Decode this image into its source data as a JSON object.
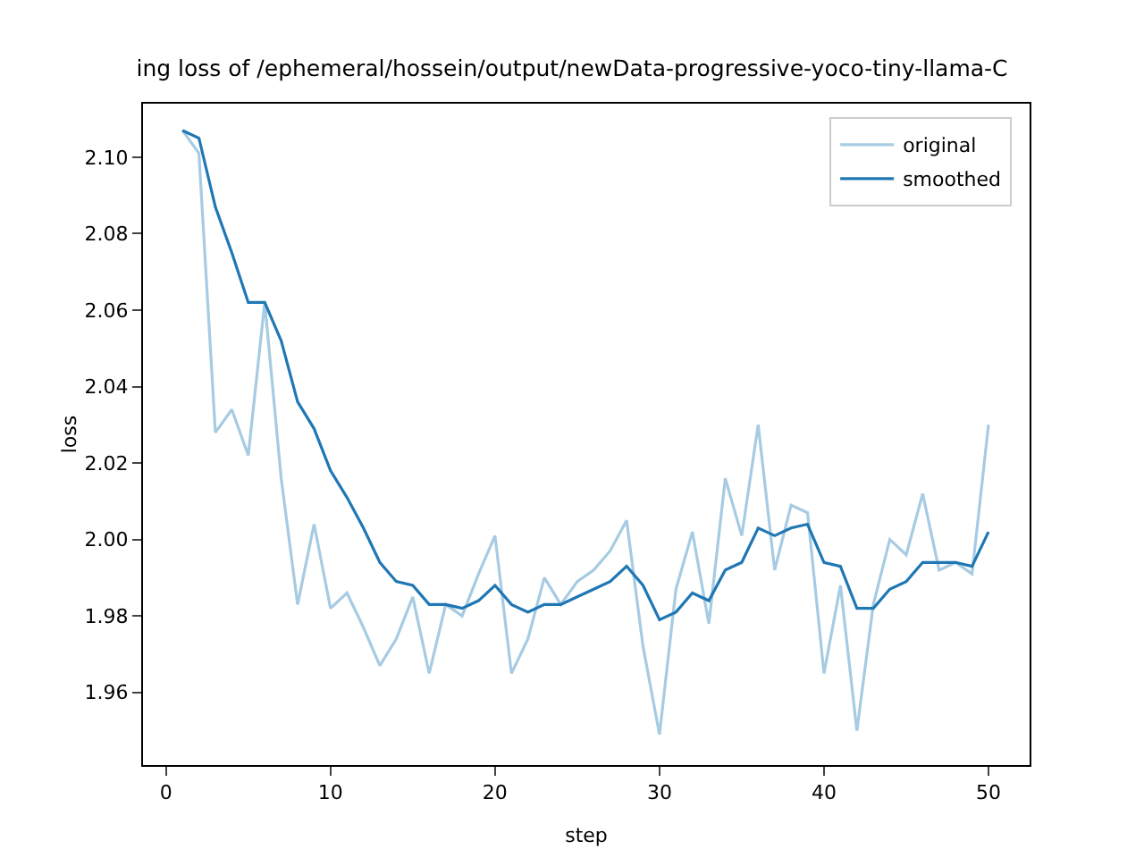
{
  "chart_data": {
    "type": "line",
    "title": "ing loss of /ephemeral/hossein/output/newData-progressive-yoco-tiny-llama-C",
    "xlabel": "step",
    "ylabel": "loss",
    "x": [
      1,
      2,
      3,
      4,
      5,
      6,
      7,
      8,
      9,
      10,
      11,
      12,
      13,
      14,
      15,
      16,
      17,
      18,
      19,
      20,
      21,
      22,
      23,
      24,
      25,
      26,
      27,
      28,
      29,
      30,
      31,
      32,
      33,
      34,
      35,
      36,
      37,
      38,
      39,
      40,
      41,
      42,
      43,
      44,
      45,
      46,
      47,
      48,
      49,
      50
    ],
    "series": [
      {
        "name": "original",
        "color": "#a6cbe3",
        "values": [
          2.107,
          2.101,
          2.028,
          2.034,
          2.022,
          2.062,
          2.016,
          1.983,
          2.004,
          1.982,
          1.986,
          1.977,
          1.967,
          1.974,
          1.985,
          1.965,
          1.983,
          1.98,
          1.991,
          2.001,
          1.965,
          1.974,
          1.99,
          1.983,
          1.989,
          1.992,
          1.997,
          2.005,
          1.972,
          1.949,
          1.987,
          2.002,
          1.978,
          2.016,
          2.001,
          2.03,
          1.992,
          2.009,
          2.007,
          1.965,
          1.988,
          1.95,
          1.983,
          2.0,
          1.996,
          2.012,
          1.992,
          1.994,
          1.991,
          2.03
        ]
      },
      {
        "name": "smoothed",
        "color": "#1f77b4",
        "values": [
          2.107,
          2.105,
          2.087,
          2.075,
          2.062,
          2.062,
          2.052,
          2.036,
          2.029,
          2.018,
          2.011,
          2.003,
          1.994,
          1.989,
          1.988,
          1.983,
          1.983,
          1.982,
          1.984,
          1.988,
          1.983,
          1.981,
          1.983,
          1.983,
          1.985,
          1.987,
          1.989,
          1.993,
          1.988,
          1.979,
          1.981,
          1.986,
          1.984,
          1.992,
          1.994,
          2.003,
          2.001,
          2.003,
          2.004,
          1.994,
          1.993,
          1.982,
          1.982,
          1.987,
          1.989,
          1.994,
          1.994,
          1.994,
          1.993,
          2.002
        ]
      }
    ],
    "xlim": [
      -1.4,
      52.5
    ],
    "xticks": [
      0,
      10,
      20,
      30,
      40,
      50
    ],
    "ylim": [
      1.941,
      2.114
    ],
    "yticks": [
      {
        "value": 1.96,
        "label": "1.96"
      },
      {
        "value": 1.98,
        "label": "1.98"
      },
      {
        "value": 2.0,
        "label": "2.00"
      },
      {
        "value": 2.02,
        "label": "2.02"
      },
      {
        "value": 2.04,
        "label": "2.04"
      },
      {
        "value": 2.06,
        "label": "2.06"
      },
      {
        "value": 2.08,
        "label": "2.08"
      },
      {
        "value": 2.1,
        "label": "2.10"
      }
    ],
    "grid": false,
    "legend": "top right",
    "marker": "none",
    "line_style": "solid"
  }
}
